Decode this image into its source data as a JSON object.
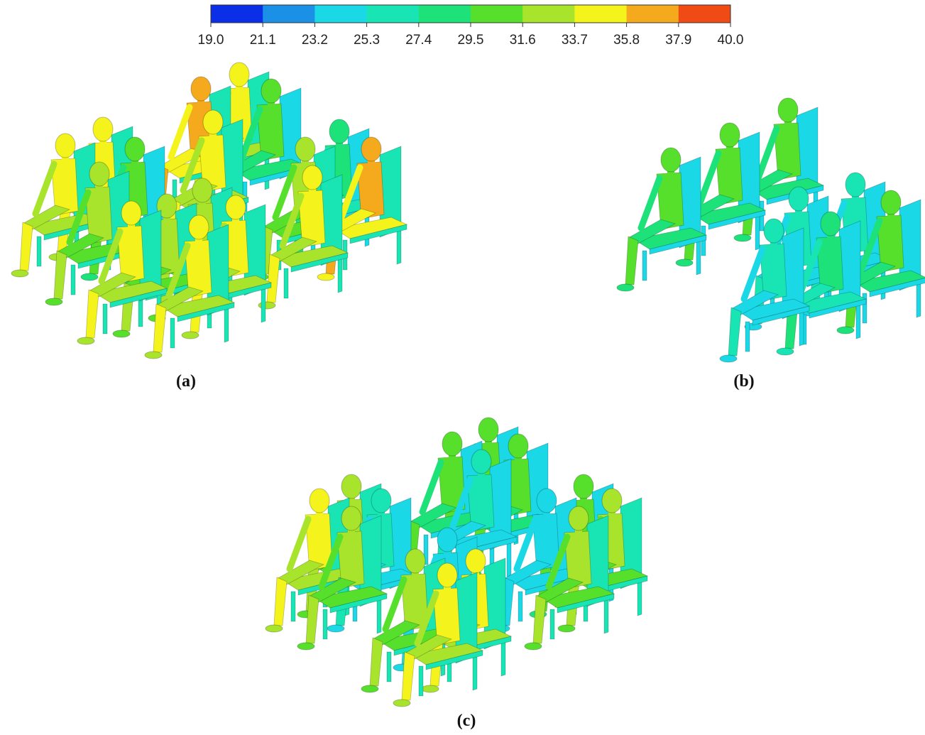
{
  "colorbar": {
    "labels": [
      "19.0",
      "21.1",
      "23.2",
      "25.3",
      "27.4",
      "29.5",
      "31.6",
      "33.7",
      "35.8",
      "37.9",
      "40.0"
    ],
    "colors": [
      "#0b2fe6",
      "#1a90e6",
      "#1ad8e6",
      "#19e5b4",
      "#1de27a",
      "#56e02c",
      "#a9e42c",
      "#f4f41c",
      "#f5a91c",
      "#f04b14"
    ]
  },
  "panels": [
    {
      "label": "(a)"
    },
    {
      "label": "(b)"
    },
    {
      "label": "(c)"
    }
  ]
}
